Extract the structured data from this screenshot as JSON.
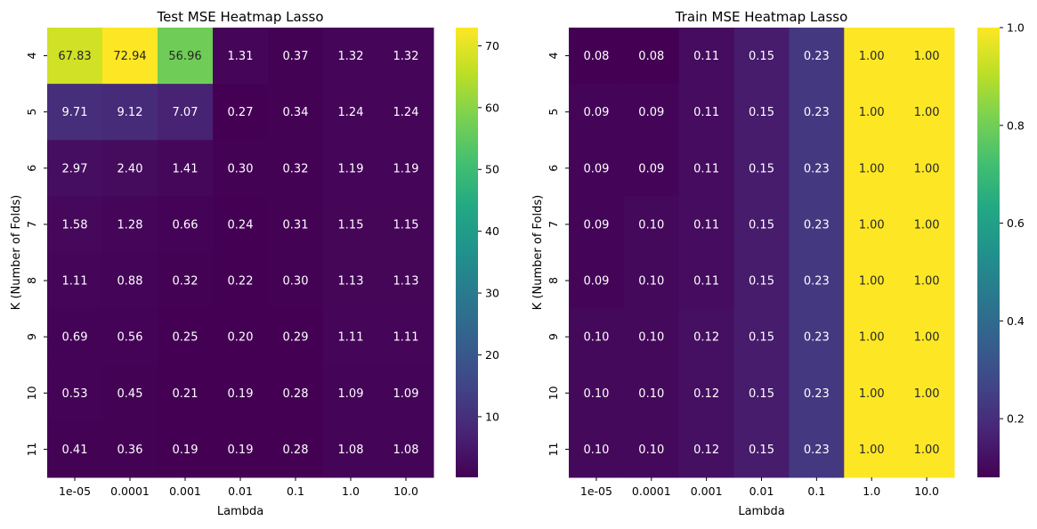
{
  "chart_data": [
    {
      "type": "heatmap",
      "title": "Test MSE Heatmap Lasso",
      "xlabel": "Lambda",
      "ylabel": "K (Number of Folds)",
      "x": [
        "1e-05",
        "0.0001",
        "0.001",
        "0.01",
        "0.1",
        "1.0",
        "10.0"
      ],
      "y": [
        "4",
        "5",
        "6",
        "7",
        "8",
        "9",
        "10",
        "11"
      ],
      "values": [
        [
          67.83,
          72.94,
          56.96,
          1.31,
          0.37,
          1.32,
          1.32
        ],
        [
          9.71,
          9.12,
          7.07,
          0.27,
          0.34,
          1.24,
          1.24
        ],
        [
          2.97,
          2.4,
          1.41,
          0.3,
          0.32,
          1.19,
          1.19
        ],
        [
          1.58,
          1.28,
          0.66,
          0.24,
          0.31,
          1.15,
          1.15
        ],
        [
          1.11,
          0.88,
          0.32,
          0.22,
          0.3,
          1.13,
          1.13
        ],
        [
          0.69,
          0.56,
          0.25,
          0.2,
          0.29,
          1.11,
          1.11
        ],
        [
          0.53,
          0.45,
          0.21,
          0.19,
          0.28,
          1.09,
          1.09
        ],
        [
          0.41,
          0.36,
          0.19,
          0.19,
          0.28,
          1.08,
          1.08
        ]
      ],
      "colormap": "viridis",
      "vmin": 0.19,
      "vmax": 72.94,
      "colorbar_ticks": [
        10,
        20,
        30,
        40,
        50,
        60,
        70
      ]
    },
    {
      "type": "heatmap",
      "title": "Train MSE Heatmap Lasso",
      "xlabel": "Lambda",
      "ylabel": "K (Number of Folds)",
      "x": [
        "1e-05",
        "0.0001",
        "0.001",
        "0.01",
        "0.1",
        "1.0",
        "10.0"
      ],
      "y": [
        "4",
        "5",
        "6",
        "7",
        "8",
        "9",
        "10",
        "11"
      ],
      "values": [
        [
          0.08,
          0.08,
          0.11,
          0.15,
          0.23,
          1.0,
          1.0
        ],
        [
          0.09,
          0.09,
          0.11,
          0.15,
          0.23,
          1.0,
          1.0
        ],
        [
          0.09,
          0.09,
          0.11,
          0.15,
          0.23,
          1.0,
          1.0
        ],
        [
          0.09,
          0.1,
          0.11,
          0.15,
          0.23,
          1.0,
          1.0
        ],
        [
          0.09,
          0.1,
          0.11,
          0.15,
          0.23,
          1.0,
          1.0
        ],
        [
          0.1,
          0.1,
          0.12,
          0.15,
          0.23,
          1.0,
          1.0
        ],
        [
          0.1,
          0.1,
          0.12,
          0.15,
          0.23,
          1.0,
          1.0
        ],
        [
          0.1,
          0.1,
          0.12,
          0.15,
          0.23,
          1.0,
          1.0
        ]
      ],
      "colormap": "viridis",
      "vmin": 0.08,
      "vmax": 1.0,
      "colorbar_ticks": [
        0.2,
        0.4,
        0.6,
        0.8,
        1.0
      ]
    }
  ]
}
